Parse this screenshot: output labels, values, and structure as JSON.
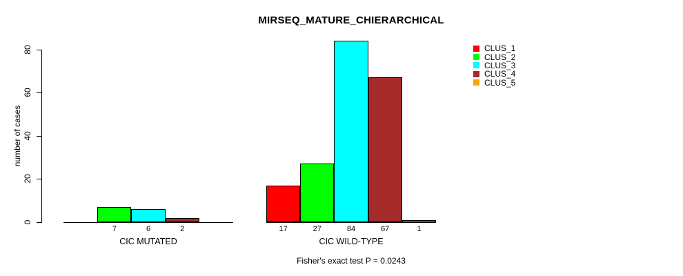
{
  "chart_data": {
    "type": "bar",
    "title": "MIRSEQ_MATURE_CHIERARCHICAL",
    "ylabel": "number of cases",
    "xlabel": "",
    "ylim": [
      0,
      84
    ],
    "yticks": [
      0,
      20,
      40,
      60,
      80
    ],
    "grid": false,
    "legend_position": "top-right",
    "legend": [
      {
        "label": "CLUS_1",
        "color": "#FF0000"
      },
      {
        "label": "CLUS_2",
        "color": "#00FF00"
      },
      {
        "label": "CLUS_3",
        "color": "#00FFFF"
      },
      {
        "label": "CLUS_4",
        "color": "#A52A2A"
      },
      {
        "label": "CLUS_5",
        "color": "#FFA500"
      }
    ],
    "groups": [
      {
        "label": "CIC MUTATED",
        "bars": [
          {
            "cluster": "CLUS_1",
            "value": 0,
            "label": "",
            "color": "#FF0000"
          },
          {
            "cluster": "CLUS_2",
            "value": 7,
            "label": "7",
            "color": "#00FF00"
          },
          {
            "cluster": "CLUS_3",
            "value": 6,
            "label": "6",
            "color": "#00FFFF"
          },
          {
            "cluster": "CLUS_4",
            "value": 2,
            "label": "2",
            "color": "#A52A2A"
          },
          {
            "cluster": "CLUS_5",
            "value": 0,
            "label": "",
            "color": "#FFA500"
          }
        ]
      },
      {
        "label": "CIC WILD-TYPE",
        "bars": [
          {
            "cluster": "CLUS_1",
            "value": 17,
            "label": "17",
            "color": "#FF0000"
          },
          {
            "cluster": "CLUS_2",
            "value": 27,
            "label": "27",
            "color": "#00FF00"
          },
          {
            "cluster": "CLUS_3",
            "value": 84,
            "label": "84",
            "color": "#00FFFF"
          },
          {
            "cluster": "CLUS_4",
            "value": 67,
            "label": "67",
            "color": "#A52A2A"
          },
          {
            "cluster": "CLUS_5",
            "value": 1,
            "label": "1",
            "color": "#FFA500"
          }
        ]
      }
    ],
    "footnote": "Fisher's exact test P = 0.0243"
  }
}
